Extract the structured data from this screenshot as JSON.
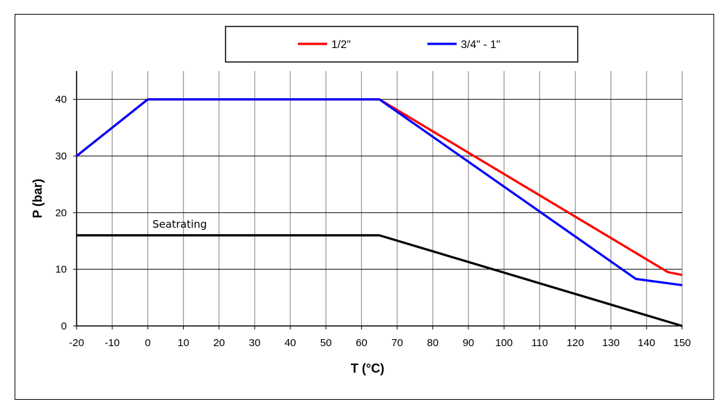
{
  "chart_data": {
    "type": "line",
    "title": "",
    "xlabel": "T (°C)",
    "ylabel": "P (bar)",
    "xlim": [
      -20,
      150
    ],
    "ylim": [
      0,
      45
    ],
    "x_ticks": [
      -20,
      -10,
      0,
      10,
      20,
      30,
      40,
      50,
      60,
      70,
      80,
      90,
      100,
      110,
      120,
      130,
      140,
      150
    ],
    "y_ticks": [
      0,
      10,
      20,
      30,
      40
    ],
    "grid": true,
    "legend_position": "top",
    "series": [
      {
        "name": "1/2\"",
        "color": "#ff0000",
        "points": [
          [
            -20,
            30
          ],
          [
            0,
            40
          ],
          [
            65,
            40
          ],
          [
            146,
            9.5
          ],
          [
            150,
            9
          ]
        ]
      },
      {
        "name": "3/4\" - 1\"",
        "color": "#0000ff",
        "points": [
          [
            -20,
            30
          ],
          [
            0,
            40
          ],
          [
            65,
            40
          ],
          [
            137,
            8.3
          ],
          [
            150,
            7.2
          ]
        ]
      },
      {
        "name": "",
        "color": "#000000",
        "points": [
          [
            -20,
            16
          ],
          [
            65,
            16
          ],
          [
            150,
            0
          ]
        ]
      }
    ],
    "annotations": [
      {
        "text": "Seatrating",
        "x": 1,
        "y": 17.5
      }
    ]
  }
}
